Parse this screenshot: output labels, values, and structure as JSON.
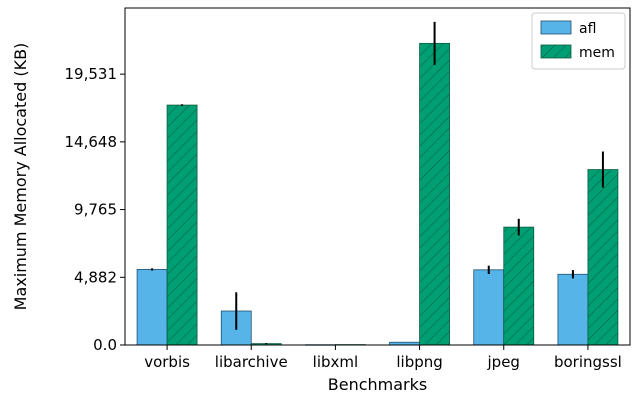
{
  "chart_data": {
    "type": "bar",
    "title": "",
    "xlabel": "Benchmarks",
    "ylabel": "Maximum Memory Allocated (KB)",
    "categories": [
      "vorbis",
      "libarchive",
      "libxml",
      "libpng",
      "jpeg",
      "boringssl"
    ],
    "yticks": [
      0,
      4882,
      9765,
      14648,
      19531
    ],
    "ytick_labels": [
      "0.0",
      "4,882",
      "9,765",
      "14,648",
      "19,531"
    ],
    "ylim": [
      0,
      24300
    ],
    "legend_position": "top-right",
    "series": [
      {
        "name": "afl",
        "color": "#56b4e9",
        "hatch": false,
        "values": [
          5450,
          2450,
          20,
          200,
          5420,
          5100
        ],
        "errors": [
          80,
          1350,
          0,
          0,
          300,
          300
        ]
      },
      {
        "name": "mem",
        "color": "#009e73",
        "hatch": true,
        "values": [
          17300,
          100,
          30,
          21750,
          8500,
          12650
        ],
        "errors": [
          60,
          40,
          0,
          1550,
          600,
          1300
        ]
      }
    ]
  }
}
